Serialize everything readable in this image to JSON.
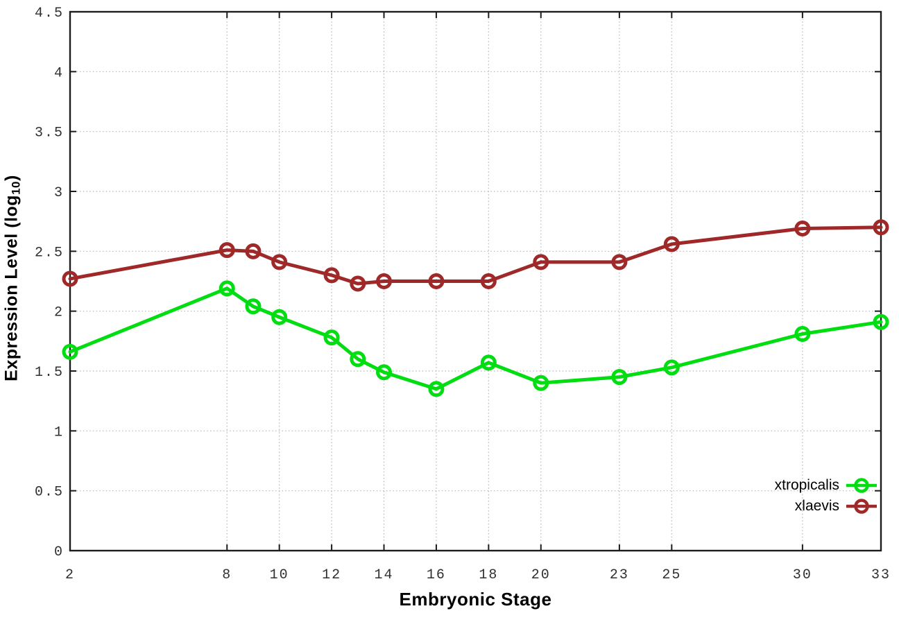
{
  "chart_data": {
    "type": "line",
    "title": "",
    "xlabel": "Embryonic Stage",
    "ylabel": {
      "pre": "Expression Level (log",
      "sub": "10",
      "post": ")"
    },
    "xlim": [
      2,
      33
    ],
    "ylim": [
      0,
      4.5
    ],
    "grid": true,
    "legend_position": "inside-bottom-right",
    "x_ticks": [
      {
        "value": 2,
        "label": "2"
      },
      {
        "value": 8,
        "label": "8"
      },
      {
        "value": 10,
        "label": "10"
      },
      {
        "value": 12,
        "label": "12"
      },
      {
        "value": 14,
        "label": "14"
      },
      {
        "value": 16,
        "label": "16"
      },
      {
        "value": 18,
        "label": "18"
      },
      {
        "value": 20,
        "label": "20"
      },
      {
        "value": 23,
        "label": "23"
      },
      {
        "value": 25,
        "label": "25"
      },
      {
        "value": 30,
        "label": "30"
      },
      {
        "value": 33,
        "label": "33"
      }
    ],
    "y_ticks": [
      {
        "value": 0,
        "label": "0"
      },
      {
        "value": 0.5,
        "label": "0.5"
      },
      {
        "value": 1,
        "label": "1"
      },
      {
        "value": 1.5,
        "label": "1.5"
      },
      {
        "value": 2,
        "label": "2"
      },
      {
        "value": 2.5,
        "label": "2.5"
      },
      {
        "value": 3,
        "label": "3"
      },
      {
        "value": 3.5,
        "label": "3.5"
      },
      {
        "value": 4,
        "label": "4"
      },
      {
        "value": 4.5,
        "label": "4.5"
      }
    ],
    "x": [
      2,
      8,
      9,
      10,
      12,
      13,
      14,
      16,
      18,
      20,
      23,
      25,
      30,
      33
    ],
    "series": [
      {
        "name": "xtropicalis",
        "color": "#00dd11",
        "values": [
          1.66,
          2.19,
          2.04,
          1.95,
          1.78,
          1.6,
          1.49,
          1.35,
          1.57,
          1.4,
          1.45,
          1.53,
          1.81,
          1.91
        ]
      },
      {
        "name": "xlaevis",
        "color": "#9f2929",
        "values": [
          2.27,
          2.51,
          2.5,
          2.41,
          2.3,
          2.23,
          2.25,
          2.25,
          2.25,
          2.41,
          2.41,
          2.56,
          2.69,
          2.7
        ]
      }
    ]
  },
  "style": {
    "background": "#ffffff",
    "grid_color": "#b4b4b4",
    "axis_color": "#1c1c1c",
    "tick_label_color": "#303030",
    "text_color": "#000000"
  }
}
